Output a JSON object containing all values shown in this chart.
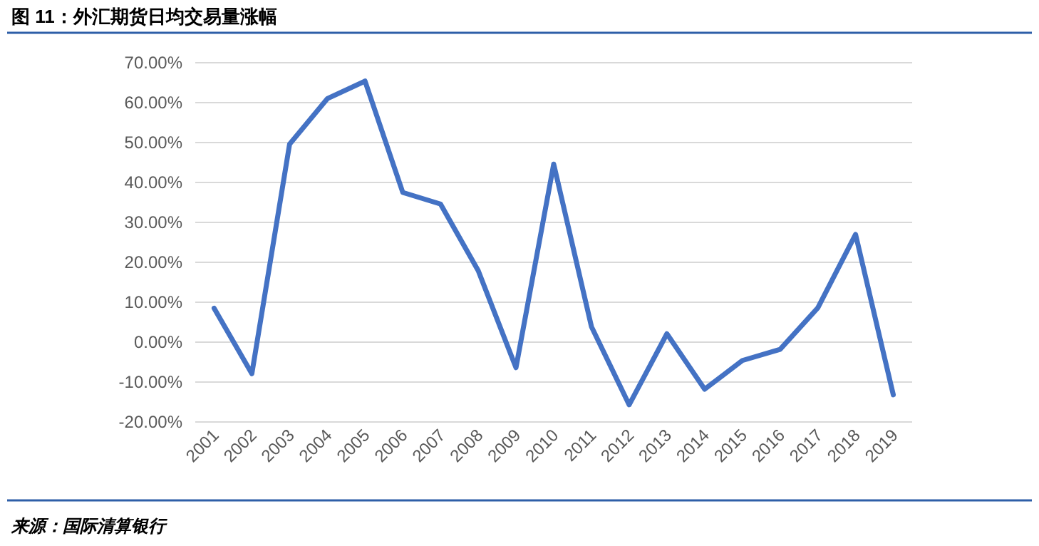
{
  "chart_data": {
    "type": "line",
    "title": "图 11：外汇期货日均交易量涨幅",
    "categories": [
      "2001",
      "2002",
      "2003",
      "2004",
      "2005",
      "2006",
      "2007",
      "2008",
      "2009",
      "2010",
      "2011",
      "2012",
      "2013",
      "2014",
      "2015",
      "2016",
      "2017",
      "2018",
      "2019"
    ],
    "series": [
      {
        "color": "#4472c4",
        "values": [
          8.5,
          -7.9,
          49.6,
          61,
          65.4,
          37.5,
          34.6,
          17.9,
          -6.4,
          44.6,
          3.9,
          -15.7,
          2.1,
          -11.8,
          -4.6,
          -1.8,
          8.6,
          27,
          -13.2
        ]
      }
    ],
    "ylim": [
      -20,
      70
    ],
    "yticks": [
      {
        "value": -20,
        "label": "-20.00%"
      },
      {
        "value": -10,
        "label": "-10.00%"
      },
      {
        "value": 0,
        "label": "0.00%"
      },
      {
        "value": 10,
        "label": "10.00%"
      },
      {
        "value": 20,
        "label": "20.00%"
      },
      {
        "value": 30,
        "label": "30.00%"
      },
      {
        "value": 40,
        "label": "40.00%"
      },
      {
        "value": 50,
        "label": "50.00%"
      },
      {
        "value": 60,
        "label": "60.00%"
      },
      {
        "value": 70,
        "label": "70.00%"
      }
    ],
    "grid": "y",
    "marker": "none",
    "line_style": "solid",
    "annotations": [
      "来源：国际清算银行"
    ]
  }
}
